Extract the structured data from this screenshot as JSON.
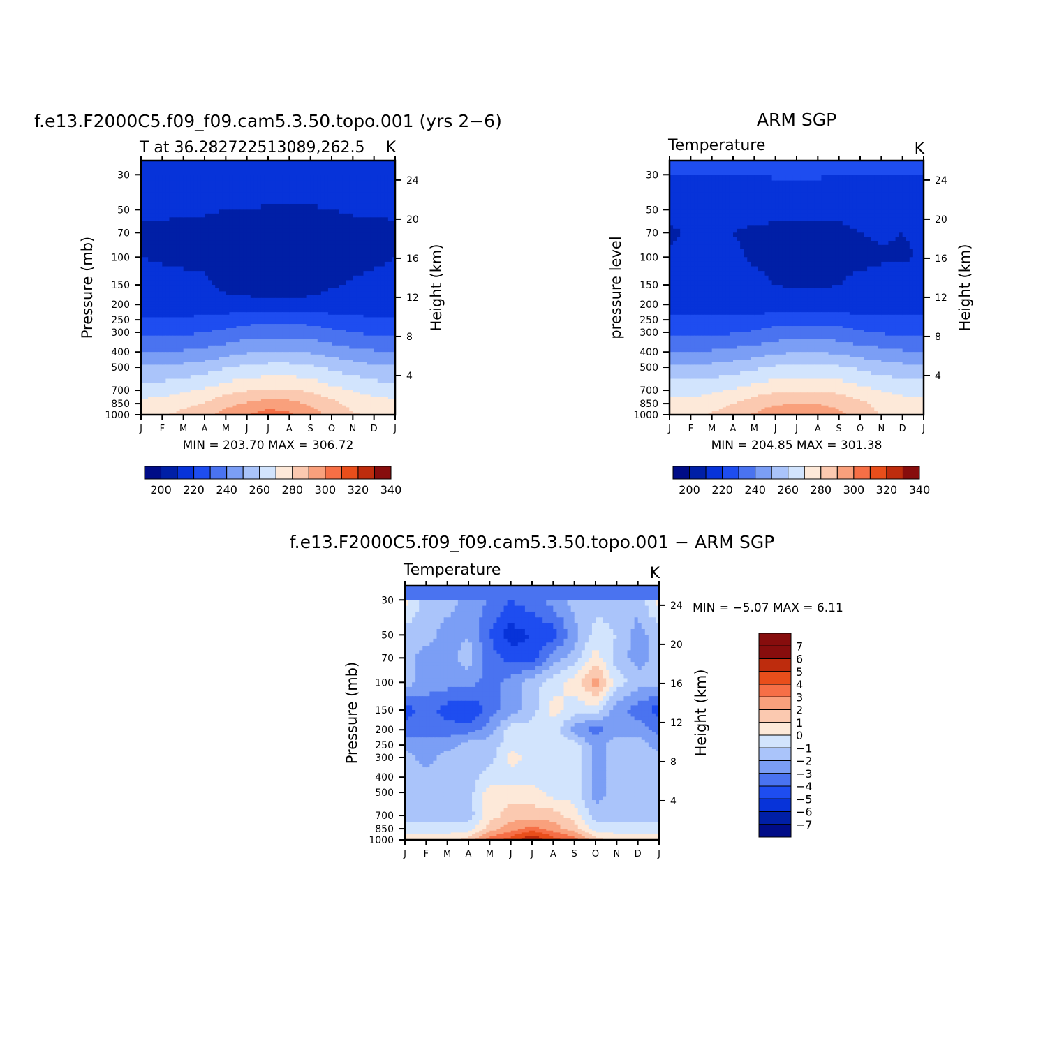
{
  "colors": {
    "t_levels": [
      "#000c87",
      "#001fa6",
      "#0733d9",
      "#1e4df0",
      "#4a73f0",
      "#7b9ef5",
      "#aac4fa",
      "#d2e4fd",
      "#fde9d9",
      "#fbc9b0",
      "#f9a07c",
      "#f66f46",
      "#e94e1b",
      "#be2c0d",
      "#870d0d"
    ],
    "d_levels": [
      "#000c87",
      "#001fa6",
      "#0733d9",
      "#1e4df0",
      "#4a73f0",
      "#7b9ef5",
      "#aac4fa",
      "#d2e4fd",
      "#fde9d9",
      "#fbc9b0",
      "#f9a07c",
      "#f66f46",
      "#e94e1b",
      "#be2c0d",
      "#870d0d"
    ]
  },
  "plots": {
    "model": {
      "title": "f.e13.F2000C5.f09_f09.cam5.3.50.topo.001 (yrs 2−6)",
      "left_string": "T at 36.282722513089,262.5",
      "right_string": "K",
      "ylabel_left": "Pressure (mb)",
      "ylabel_right": "Height (km)",
      "minmax": "MIN = 203.70 MAX = 306.72"
    },
    "obs": {
      "title": "ARM SGP",
      "left_string": "Temperature",
      "right_string": "K",
      "ylabel_left": "pressure level",
      "ylabel_right": "Height (km)",
      "minmax": "MIN = 204.85 MAX = 301.38"
    },
    "diff": {
      "title": "f.e13.F2000C5.f09_f09.cam5.3.50.topo.001 − ARM SGP",
      "left_string": "Temperature",
      "right_string": "K",
      "ylabel_left": "Pressure (mb)",
      "ylabel_right": "Height (km)",
      "minmax": "MIN = −5.07 MAX = 6.11"
    }
  },
  "chart_data": [
    {
      "type": "heatmap",
      "title": "f.e13.F2000C5.f09_f09.cam5.3.50.topo.001 (yrs 2−6)",
      "x": [
        "J",
        "F",
        "M",
        "A",
        "M",
        "J",
        "J",
        "A",
        "S",
        "O",
        "N",
        "D",
        "J"
      ],
      "y_pressure_mb": [
        30,
        50,
        70,
        100,
        150,
        200,
        250,
        300,
        400,
        500,
        700,
        850,
        1000
      ],
      "y_height_km_ticks": [
        24,
        20,
        16,
        12,
        8,
        4
      ],
      "contour_levels": [
        200,
        210,
        220,
        230,
        240,
        250,
        260,
        270,
        280,
        290,
        300,
        310,
        320,
        330,
        340
      ],
      "colorbar_labels": [
        "200",
        "220",
        "240",
        "260",
        "280",
        "300",
        "320",
        "340"
      ],
      "z_K": [
        [
          218,
          218,
          217,
          217,
          217,
          217,
          218,
          218,
          217,
          217,
          217,
          217,
          218
        ],
        [
          211,
          211,
          211,
          211,
          210,
          210,
          209,
          209,
          209,
          210,
          211,
          211,
          211
        ],
        [
          209,
          209,
          208,
          207,
          206,
          205,
          205,
          205,
          205,
          206,
          207,
          208,
          209
        ],
        [
          210,
          209,
          208,
          207,
          205,
          204,
          204,
          204,
          204,
          205,
          207,
          208,
          210
        ],
        [
          214,
          213,
          213,
          212,
          207,
          206,
          205,
          205,
          206,
          209,
          211,
          213,
          214
        ],
        [
          217,
          216,
          216,
          215,
          214,
          213,
          212,
          212,
          213,
          214,
          215,
          216,
          217
        ],
        [
          221,
          221,
          221,
          222,
          224,
          226,
          227,
          227,
          226,
          224,
          222,
          221,
          221
        ],
        [
          228,
          228,
          228,
          230,
          232,
          235,
          236,
          236,
          235,
          232,
          230,
          228,
          228
        ],
        [
          240,
          240,
          241,
          243,
          246,
          249,
          251,
          251,
          249,
          246,
          243,
          241,
          240
        ],
        [
          251,
          251,
          253,
          255,
          259,
          262,
          263,
          263,
          262,
          258,
          255,
          252,
          251
        ],
        [
          265,
          266,
          268,
          271,
          276,
          279,
          281,
          281,
          278,
          273,
          269,
          266,
          265
        ],
        [
          273,
          274,
          277,
          281,
          287,
          291,
          294,
          293,
          289,
          283,
          277,
          274,
          273
        ],
        [
          278,
          279,
          283,
          287,
          294,
          300,
          306,
          302,
          295,
          287,
          281,
          279,
          278
        ]
      ],
      "min": 203.7,
      "max": 306.72
    },
    {
      "type": "heatmap",
      "title": "ARM SGP",
      "x": [
        "J",
        "F",
        "M",
        "A",
        "M",
        "J",
        "J",
        "A",
        "S",
        "O",
        "N",
        "D",
        "J"
      ],
      "y_pressure_mb": [
        30,
        50,
        70,
        100,
        150,
        200,
        250,
        300,
        400,
        500,
        700,
        850,
        1000
      ],
      "y_height_km_ticks": [
        24,
        20,
        16,
        12,
        8,
        4
      ],
      "contour_levels": [
        200,
        210,
        220,
        230,
        240,
        250,
        260,
        270,
        280,
        290,
        300,
        310,
        320,
        330,
        340
      ],
      "colorbar_labels": [
        "200",
        "220",
        "240",
        "260",
        "280",
        "300",
        "320",
        "340"
      ],
      "z_K": [
        [
          218,
          218,
          218,
          218,
          219,
          221,
          222,
          221,
          219,
          218,
          218,
          218,
          218
        ],
        [
          212,
          211,
          212,
          212,
          212,
          211,
          211,
          211,
          211,
          212,
          212,
          212,
          212
        ],
        [
          209,
          211,
          211,
          210,
          209,
          209,
          209,
          209,
          209,
          210,
          211,
          210,
          211
        ],
        [
          211,
          211,
          211,
          211,
          209,
          208,
          207,
          207,
          208,
          208,
          209,
          209,
          211
        ],
        [
          214,
          214,
          214,
          213,
          212,
          210,
          209,
          209,
          210,
          212,
          213,
          214,
          214
        ],
        [
          217,
          217,
          217,
          216,
          215,
          214,
          214,
          214,
          214,
          215,
          216,
          217,
          217
        ],
        [
          221,
          221,
          221,
          222,
          223,
          225,
          226,
          226,
          225,
          223,
          222,
          221,
          221
        ],
        [
          228,
          228,
          228,
          229,
          231,
          234,
          235,
          235,
          234,
          231,
          229,
          228,
          228
        ],
        [
          241,
          241,
          241,
          243,
          245,
          248,
          250,
          250,
          248,
          245,
          243,
          241,
          241
        ],
        [
          252,
          252,
          253,
          255,
          258,
          261,
          262,
          262,
          261,
          258,
          255,
          253,
          252
        ],
        [
          266,
          266,
          268,
          271,
          275,
          278,
          279,
          279,
          277,
          273,
          269,
          267,
          266
        ],
        [
          273,
          273,
          276,
          280,
          285,
          289,
          290,
          290,
          287,
          282,
          277,
          274,
          273
        ],
        [
          276,
          277,
          281,
          285,
          291,
          297,
          301,
          299,
          292,
          286,
          279,
          277,
          276
        ]
      ],
      "min": 204.85,
      "max": 301.38
    },
    {
      "type": "heatmap",
      "title": "f.e13.F2000C5.f09_f09.cam5.3.50.topo.001 − ARM SGP",
      "x": [
        "J",
        "F",
        "M",
        "A",
        "M",
        "J",
        "J",
        "A",
        "S",
        "O",
        "N",
        "D",
        "J"
      ],
      "y_pressure_mb": [
        30,
        50,
        70,
        100,
        150,
        200,
        250,
        300,
        400,
        500,
        700,
        850,
        1000
      ],
      "y_height_km_ticks": [
        24,
        20,
        16,
        12,
        8,
        4
      ],
      "contour_levels": [
        -7,
        -6,
        -5,
        -4,
        -3,
        -2,
        -1,
        0,
        1,
        2,
        3,
        4,
        5,
        6,
        7
      ],
      "colorbar_labels": [
        "7",
        "6",
        "5",
        "4",
        "3",
        "2",
        "1",
        "0",
        "−1",
        "−2",
        "−3",
        "−4",
        "−5",
        "−6",
        "−7"
      ],
      "z_K": [
        [
          0.5,
          -1.5,
          -1.5,
          -2.5,
          -3,
          -4,
          -3.5,
          -2.5,
          -1.5,
          -1.5,
          -1.5,
          -1.5,
          0.5
        ],
        [
          -1.5,
          -1.5,
          -2.5,
          -2,
          -4,
          -5.5,
          -5,
          -4.5,
          -2.5,
          -0.5,
          -1,
          -2.5,
          -1.5
        ],
        [
          -1.5,
          -2.5,
          -2.5,
          -1.5,
          -3.5,
          -4.5,
          -4.5,
          -2.5,
          -1.5,
          0.5,
          -1.5,
          -2.5,
          -1.5
        ],
        [
          -1.5,
          -2.5,
          -2.5,
          -2.5,
          -3.5,
          -2.5,
          -1.5,
          -0.5,
          0.5,
          2.5,
          -0.5,
          -1.5,
          -1.5
        ],
        [
          -4.5,
          -3.5,
          -4.5,
          -5,
          -3.5,
          -2.5,
          -1.5,
          0.5,
          -0.5,
          -0.5,
          -2.5,
          -3.5,
          -4.5
        ],
        [
          -3.5,
          -3.5,
          -3.5,
          -3.5,
          -2.5,
          -0.5,
          -0.5,
          -0.5,
          -2.5,
          -3.5,
          -2.5,
          -2.5,
          -3.5
        ],
        [
          -2.5,
          -2.5,
          -2.5,
          -1.5,
          -1.5,
          -0.5,
          -0.5,
          -0.5,
          -0.5,
          -2.5,
          -1.5,
          -1.5,
          -2.5
        ],
        [
          -1.5,
          -2.5,
          -1.5,
          -1.5,
          -1.5,
          0.5,
          -0.5,
          -0.5,
          -0.5,
          -2.5,
          -1.5,
          -1.5,
          -1.5
        ],
        [
          -1.5,
          -1.5,
          -1.5,
          -1.5,
          -0.5,
          -0.5,
          -0.5,
          -0.5,
          -0.5,
          -2.5,
          -1.5,
          -1.5,
          -1.5
        ],
        [
          -1.5,
          -1.5,
          -1.5,
          -1.5,
          0.5,
          0.5,
          0.5,
          -0.5,
          -0.5,
          -2.5,
          -1.5,
          -1.5,
          -1.5
        ],
        [
          -1.5,
          -1.5,
          -1.5,
          -1.5,
          0.5,
          1.5,
          1.5,
          1.5,
          0.5,
          -1.5,
          -1.5,
          -1.5,
          -1.5
        ],
        [
          -0.5,
          -0.5,
          -0.5,
          -0.5,
          1.5,
          2.5,
          3.5,
          2.5,
          1.5,
          -0.5,
          -0.5,
          -0.5,
          -0.5
        ],
        [
          0.5,
          0.5,
          0.5,
          1.5,
          3.5,
          4.5,
          6.1,
          4.5,
          3.5,
          1.5,
          0.5,
          0.5,
          0.5
        ]
      ],
      "min": -5.07,
      "max": 6.11
    }
  ]
}
